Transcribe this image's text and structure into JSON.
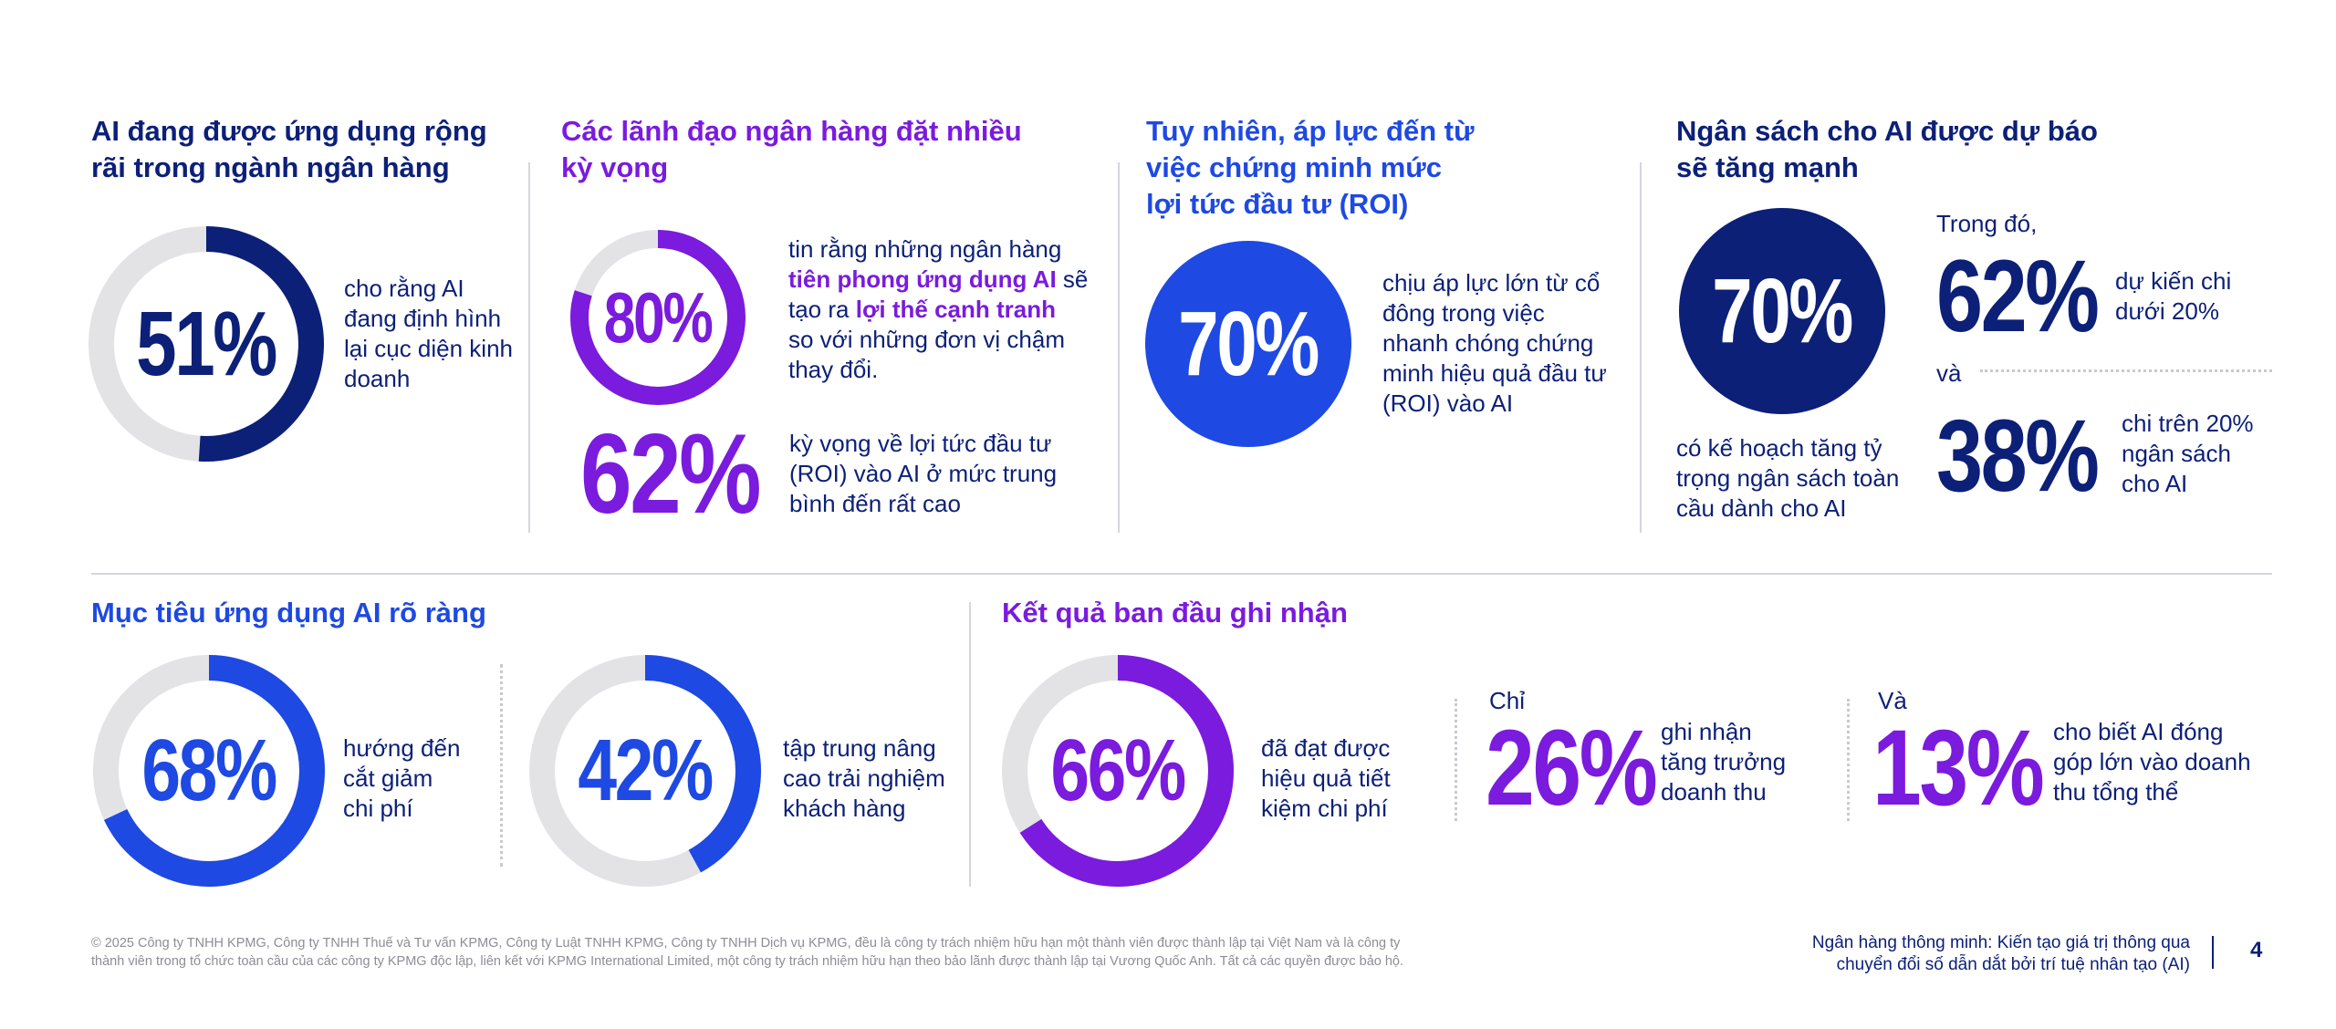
{
  "colors": {
    "navy": "#0c2078",
    "purple": "#7a1bde",
    "blue": "#1e49e2",
    "track": "#e3e3e6"
  },
  "panel1": {
    "title_l1": "AI đang được ứng dụng rộng",
    "title_l2": "rãi trong ngành ngân hàng",
    "value": "51%",
    "percent": 51,
    "desc": [
      "cho rằng AI",
      "đang định hình",
      "lại cục diện kinh",
      "doanh"
    ]
  },
  "panel2": {
    "title_l1": "Các lãnh đạo ngân hàng đặt nhiều",
    "title_l2": "kỳ vọng",
    "value1": "80%",
    "percent1": 80,
    "desc1_l1": "tin rằng những ngân hàng",
    "desc1_hl1": "tiên phong ứng dụng AI",
    "desc1_mid": " sẽ",
    "desc1_pre2": "tạo ra ",
    "desc1_hl2": "lợi thế cạnh tranh",
    "desc1_l3": "so với những đơn vị chậm",
    "desc1_l4": "thay đổi.",
    "value2": "62%",
    "desc2": [
      "kỳ vọng về lợi tức đầu tư",
      "(ROI) vào AI ở mức trung",
      "bình đến rất cao"
    ]
  },
  "panel3": {
    "title": [
      "Tuy nhiên, áp lực đến từ",
      "việc chứng minh mức",
      "lợi tức đầu tư (ROI)"
    ],
    "value": "70%",
    "desc": [
      "chịu áp lực lớn từ cổ",
      "đông trong việc",
      "nhanh chóng chứng",
      "minh hiệu quả đầu tư",
      "(ROI) vào AI"
    ]
  },
  "panel4": {
    "title_l1": "Ngân sách cho AI được dự báo",
    "title_l2": "sẽ tăng mạnh",
    "value": "70%",
    "desc": [
      "có kế hoạch tăng tỷ",
      "trọng ngân sách toàn",
      "cầu dành cho AI"
    ],
    "intro": "Trong đó,",
    "value_a": "62%",
    "desc_a": [
      "dự kiến chi",
      "dưới 20%"
    ],
    "connector": "và",
    "value_b": "38%",
    "desc_b": [
      "chi trên 20%",
      "ngân sách",
      "cho AI"
    ]
  },
  "section5": {
    "title": "Mục tiêu ứng dụng AI rõ ràng",
    "value1": "68%",
    "percent1": 68,
    "desc1": [
      "hướng đến",
      "cắt giảm",
      "chi phí"
    ],
    "value2": "42%",
    "percent2": 42,
    "desc2": [
      "tập trung nâng",
      "cao trải nghiệm",
      "khách hàng"
    ]
  },
  "section6": {
    "title": "Kết quả ban đầu ghi nhận",
    "value1": "66%",
    "percent1": 66,
    "desc1": [
      "đã đạt được",
      "hiệu quả tiết",
      "kiệm chi phí"
    ],
    "intro2": "Chỉ",
    "value2": "26%",
    "desc2": [
      "ghi nhận",
      "tăng trưởng",
      "doanh thu"
    ],
    "intro3": "Và",
    "value3": "13%",
    "desc3": [
      "cho biết AI đóng",
      "góp lớn vào doanh",
      "thu tổng thể"
    ]
  },
  "footer": {
    "copyright_l1": "© 2025 Công ty TNHH KPMG, Công ty TNHH Thuế và Tư vấn KPMG, Công ty Luật TNHH KPMG, Công ty TNHH Dịch vụ KPMG, đều là công ty trách nhiệm hữu hạn một thành viên được thành lập tại Việt Nam và là công ty",
    "copyright_l2": "thành viên trong tổ chức toàn cầu của các công ty KPMG độc lập, liên kết với KPMG International Limited, một công ty trách nhiệm hữu hạn theo bảo lãnh được thành lập tại Vương Quốc Anh. Tất cả các quyền được bảo hộ.",
    "report_l1": "Ngân hàng thông minh: Kiến tạo giá trị thông qua",
    "report_l2": "chuyển đổi số dẫn dắt bởi trí tuệ nhân tạo (AI)",
    "page_number": "4"
  }
}
